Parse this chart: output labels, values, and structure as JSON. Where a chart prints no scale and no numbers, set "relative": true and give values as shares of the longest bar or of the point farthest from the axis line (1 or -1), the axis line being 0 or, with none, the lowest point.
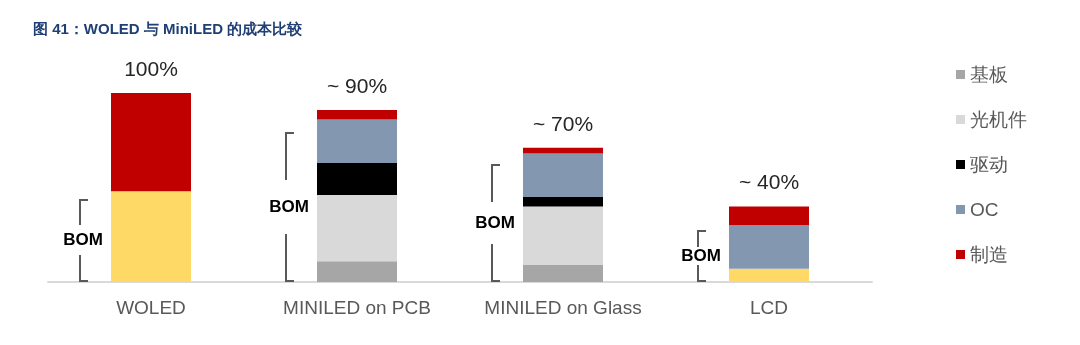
{
  "chart_data": {
    "type": "bar",
    "title": "图 41：WOLED 与 MiniLED 的成本比较",
    "categories": [
      "WOLED",
      "MINILED on PCB",
      "MINILED on Glass",
      "LCD"
    ],
    "stacked": true,
    "relative": true,
    "legend": "right",
    "grid": false,
    "series": [
      {
        "color": "#ffd966",
        "values": [
          0.48,
          null,
          null,
          0.07
        ]
      },
      {
        "name": "基板",
        "color": "#a6a6a6",
        "values": [
          null,
          0.11,
          0.09,
          null
        ]
      },
      {
        "name": "光机件",
        "color": "#d9d9d9",
        "values": [
          null,
          0.35,
          0.31,
          null
        ]
      },
      {
        "name": "驱动",
        "color": "#000000",
        "values": [
          null,
          0.17,
          0.05,
          null
        ]
      },
      {
        "name": "OC",
        "color": "#8497b0",
        "values": [
          null,
          0.23,
          0.23,
          0.23
        ]
      },
      {
        "name": "制造",
        "color": "#c00000",
        "values": [
          0.52,
          0.05,
          0.03,
          0.1
        ]
      }
    ],
    "totals": [
      "100%",
      "~ 90%",
      "~ 70%",
      "~ 40%"
    ],
    "annotations": [
      "BOM",
      "BOM",
      "BOM",
      "BOM"
    ]
  }
}
